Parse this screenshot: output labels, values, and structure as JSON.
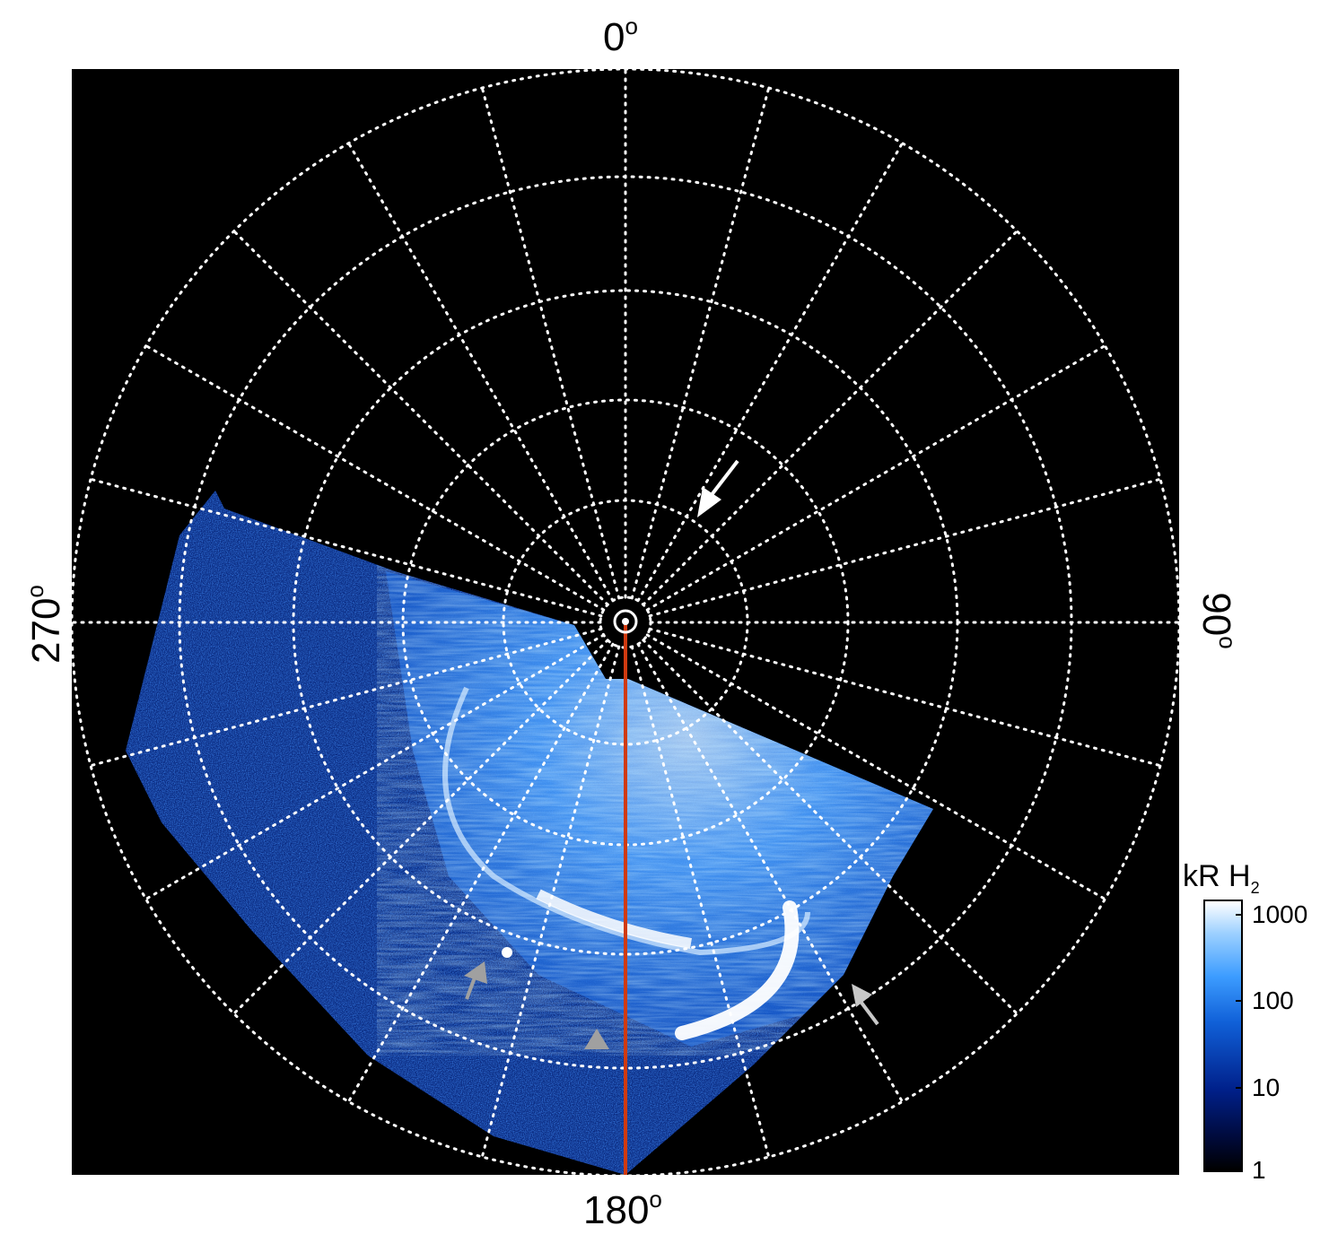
{
  "labels": {
    "top": "0",
    "bottom": "180",
    "left": "270",
    "right": "90",
    "degree_symbol": "o"
  },
  "colorbar": {
    "title_main": "kR H",
    "title_sub": "2",
    "ticks": [
      "1000",
      "100",
      "10",
      "1"
    ],
    "scale": "log",
    "colors": [
      "#000000",
      "#00208a",
      "#1060d8",
      "#3c9cff",
      "#ffffff"
    ]
  },
  "image": {
    "background": "#000000",
    "grid_color": "#ffffff",
    "grid_style": "dotted",
    "meridian_color": "#d03a10",
    "white_arrow_color": "#ffffff",
    "gray_arrow_color": "#a0a0a0"
  }
}
